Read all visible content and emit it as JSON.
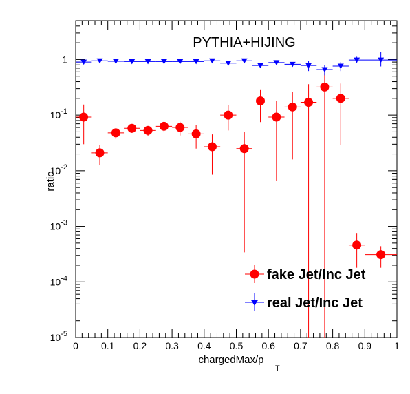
{
  "chart_data": {
    "type": "scatter",
    "title": "PYTHIA+HIJING",
    "xlabel_main": "chargedMax/p",
    "xlabel_sub": "T",
    "ylabel": "ratio",
    "xlim": [
      0,
      1
    ],
    "ylim": [
      1e-05,
      5
    ],
    "yscale": "log",
    "grid": false,
    "legend_position": "bottom-right",
    "x_ticks": [
      {
        "v": 0,
        "label": "0"
      },
      {
        "v": 0.1,
        "label": "0.1"
      },
      {
        "v": 0.2,
        "label": "0.2"
      },
      {
        "v": 0.3,
        "label": "0.3"
      },
      {
        "v": 0.4,
        "label": "0.4"
      },
      {
        "v": 0.5,
        "label": "0.5"
      },
      {
        "v": 0.6,
        "label": "0.6"
      },
      {
        "v": 0.7,
        "label": "0.7"
      },
      {
        "v": 0.8,
        "label": "0.8"
      },
      {
        "v": 0.9,
        "label": "0.9"
      },
      {
        "v": 1,
        "label": "1"
      }
    ],
    "y_ticks": [
      {
        "v": 1e-05,
        "base": "10",
        "exp": "-5"
      },
      {
        "v": 0.0001,
        "base": "10",
        "exp": "-4"
      },
      {
        "v": 0.001,
        "base": "10",
        "exp": "-3"
      },
      {
        "v": 0.01,
        "base": "10",
        "exp": "-2"
      },
      {
        "v": 0.1,
        "base": "10",
        "exp": "-1"
      },
      {
        "v": 1,
        "base": "1",
        "exp": ""
      }
    ],
    "series": [
      {
        "name": "fake Jet/Inc Jet",
        "color": "#ff0000",
        "marker": "circle",
        "points": [
          {
            "x": 0.025,
            "y": 0.092,
            "lo": 0.03,
            "hi": 0.155,
            "xerr": 0.025
          },
          {
            "x": 0.075,
            "y": 0.021,
            "lo": 0.0125,
            "hi": 0.029,
            "xerr": 0.025
          },
          {
            "x": 0.125,
            "y": 0.048,
            "lo": 0.037,
            "hi": 0.058,
            "xerr": 0.025
          },
          {
            "x": 0.175,
            "y": 0.058,
            "lo": 0.048,
            "hi": 0.069,
            "xerr": 0.025
          },
          {
            "x": 0.225,
            "y": 0.053,
            "lo": 0.042,
            "hi": 0.064,
            "xerr": 0.025
          },
          {
            "x": 0.275,
            "y": 0.063,
            "lo": 0.049,
            "hi": 0.077,
            "xerr": 0.025
          },
          {
            "x": 0.325,
            "y": 0.06,
            "lo": 0.043,
            "hi": 0.076,
            "xerr": 0.025
          },
          {
            "x": 0.375,
            "y": 0.046,
            "lo": 0.025,
            "hi": 0.067,
            "xerr": 0.025
          },
          {
            "x": 0.425,
            "y": 0.027,
            "lo": 0.0085,
            "hi": 0.045,
            "xerr": 0.025
          },
          {
            "x": 0.475,
            "y": 0.1,
            "lo": 0.053,
            "hi": 0.15,
            "xerr": 0.025
          },
          {
            "x": 0.525,
            "y": 0.025,
            "lo": 0.00034,
            "hi": 0.05,
            "xerr": 0.025
          },
          {
            "x": 0.575,
            "y": 0.18,
            "lo": 0.075,
            "hi": 0.29,
            "xerr": 0.025
          },
          {
            "x": 0.625,
            "y": 0.092,
            "lo": 0.0065,
            "hi": 0.18,
            "xerr": 0.025
          },
          {
            "x": 0.675,
            "y": 0.14,
            "lo": 0.016,
            "hi": 0.26,
            "xerr": 0.025
          },
          {
            "x": 0.725,
            "y": 0.17,
            "lo": 8.5e-06,
            "hi": 0.36,
            "xerr": 0.025
          },
          {
            "x": 0.775,
            "y": 0.32,
            "lo": 8.5e-06,
            "hi": 0.65,
            "xerr": 0.025
          },
          {
            "x": 0.825,
            "y": 0.2,
            "lo": 0.029,
            "hi": 0.37,
            "xerr": 0.025
          },
          {
            "x": 0.875,
            "y": 0.00046,
            "lo": 0.00018,
            "hi": 0.00076,
            "xerr": 0.025
          },
          {
            "x": 0.95,
            "y": 0.00031,
            "lo": 0.00018,
            "hi": 0.00044,
            "xerr": 0.05
          }
        ]
      },
      {
        "name": "real Jet/Inc Jet",
        "color": "#0000ff",
        "marker": "triangle-down",
        "points": [
          {
            "x": 0.025,
            "y": 0.9,
            "lo": 0.87,
            "hi": 0.93,
            "xerr": 0.025
          },
          {
            "x": 0.075,
            "y": 0.95,
            "lo": 0.93,
            "hi": 0.97,
            "xerr": 0.025
          },
          {
            "x": 0.125,
            "y": 0.93,
            "lo": 0.91,
            "hi": 0.95,
            "xerr": 0.025
          },
          {
            "x": 0.175,
            "y": 0.92,
            "lo": 0.9,
            "hi": 0.94,
            "xerr": 0.025
          },
          {
            "x": 0.225,
            "y": 0.92,
            "lo": 0.9,
            "hi": 0.94,
            "xerr": 0.025
          },
          {
            "x": 0.275,
            "y": 0.92,
            "lo": 0.9,
            "hi": 0.94,
            "xerr": 0.025
          },
          {
            "x": 0.325,
            "y": 0.92,
            "lo": 0.9,
            "hi": 0.94,
            "xerr": 0.025
          },
          {
            "x": 0.375,
            "y": 0.92,
            "lo": 0.89,
            "hi": 0.95,
            "xerr": 0.025
          },
          {
            "x": 0.425,
            "y": 0.95,
            "lo": 0.92,
            "hi": 0.98,
            "xerr": 0.025
          },
          {
            "x": 0.475,
            "y": 0.86,
            "lo": 0.8,
            "hi": 0.92,
            "xerr": 0.025
          },
          {
            "x": 0.525,
            "y": 0.95,
            "lo": 0.91,
            "hi": 0.99,
            "xerr": 0.025
          },
          {
            "x": 0.575,
            "y": 0.78,
            "lo": 0.72,
            "hi": 0.84,
            "xerr": 0.025
          },
          {
            "x": 0.625,
            "y": 0.88,
            "lo": 0.82,
            "hi": 0.94,
            "xerr": 0.025
          },
          {
            "x": 0.675,
            "y": 0.82,
            "lo": 0.74,
            "hi": 0.9,
            "xerr": 0.025
          },
          {
            "x": 0.725,
            "y": 0.78,
            "lo": 0.62,
            "hi": 0.94,
            "xerr": 0.025
          },
          {
            "x": 0.775,
            "y": 0.66,
            "lo": 0.52,
            "hi": 0.8,
            "xerr": 0.025
          },
          {
            "x": 0.825,
            "y": 0.76,
            "lo": 0.62,
            "hi": 0.9,
            "xerr": 0.025
          },
          {
            "x": 0.875,
            "y": 0.98,
            "lo": 0.86,
            "hi": 1.12,
            "xerr": 0.025
          },
          {
            "x": 0.95,
            "y": 0.98,
            "lo": 0.75,
            "hi": 1.35,
            "xerr": 0.05
          }
        ]
      }
    ]
  }
}
